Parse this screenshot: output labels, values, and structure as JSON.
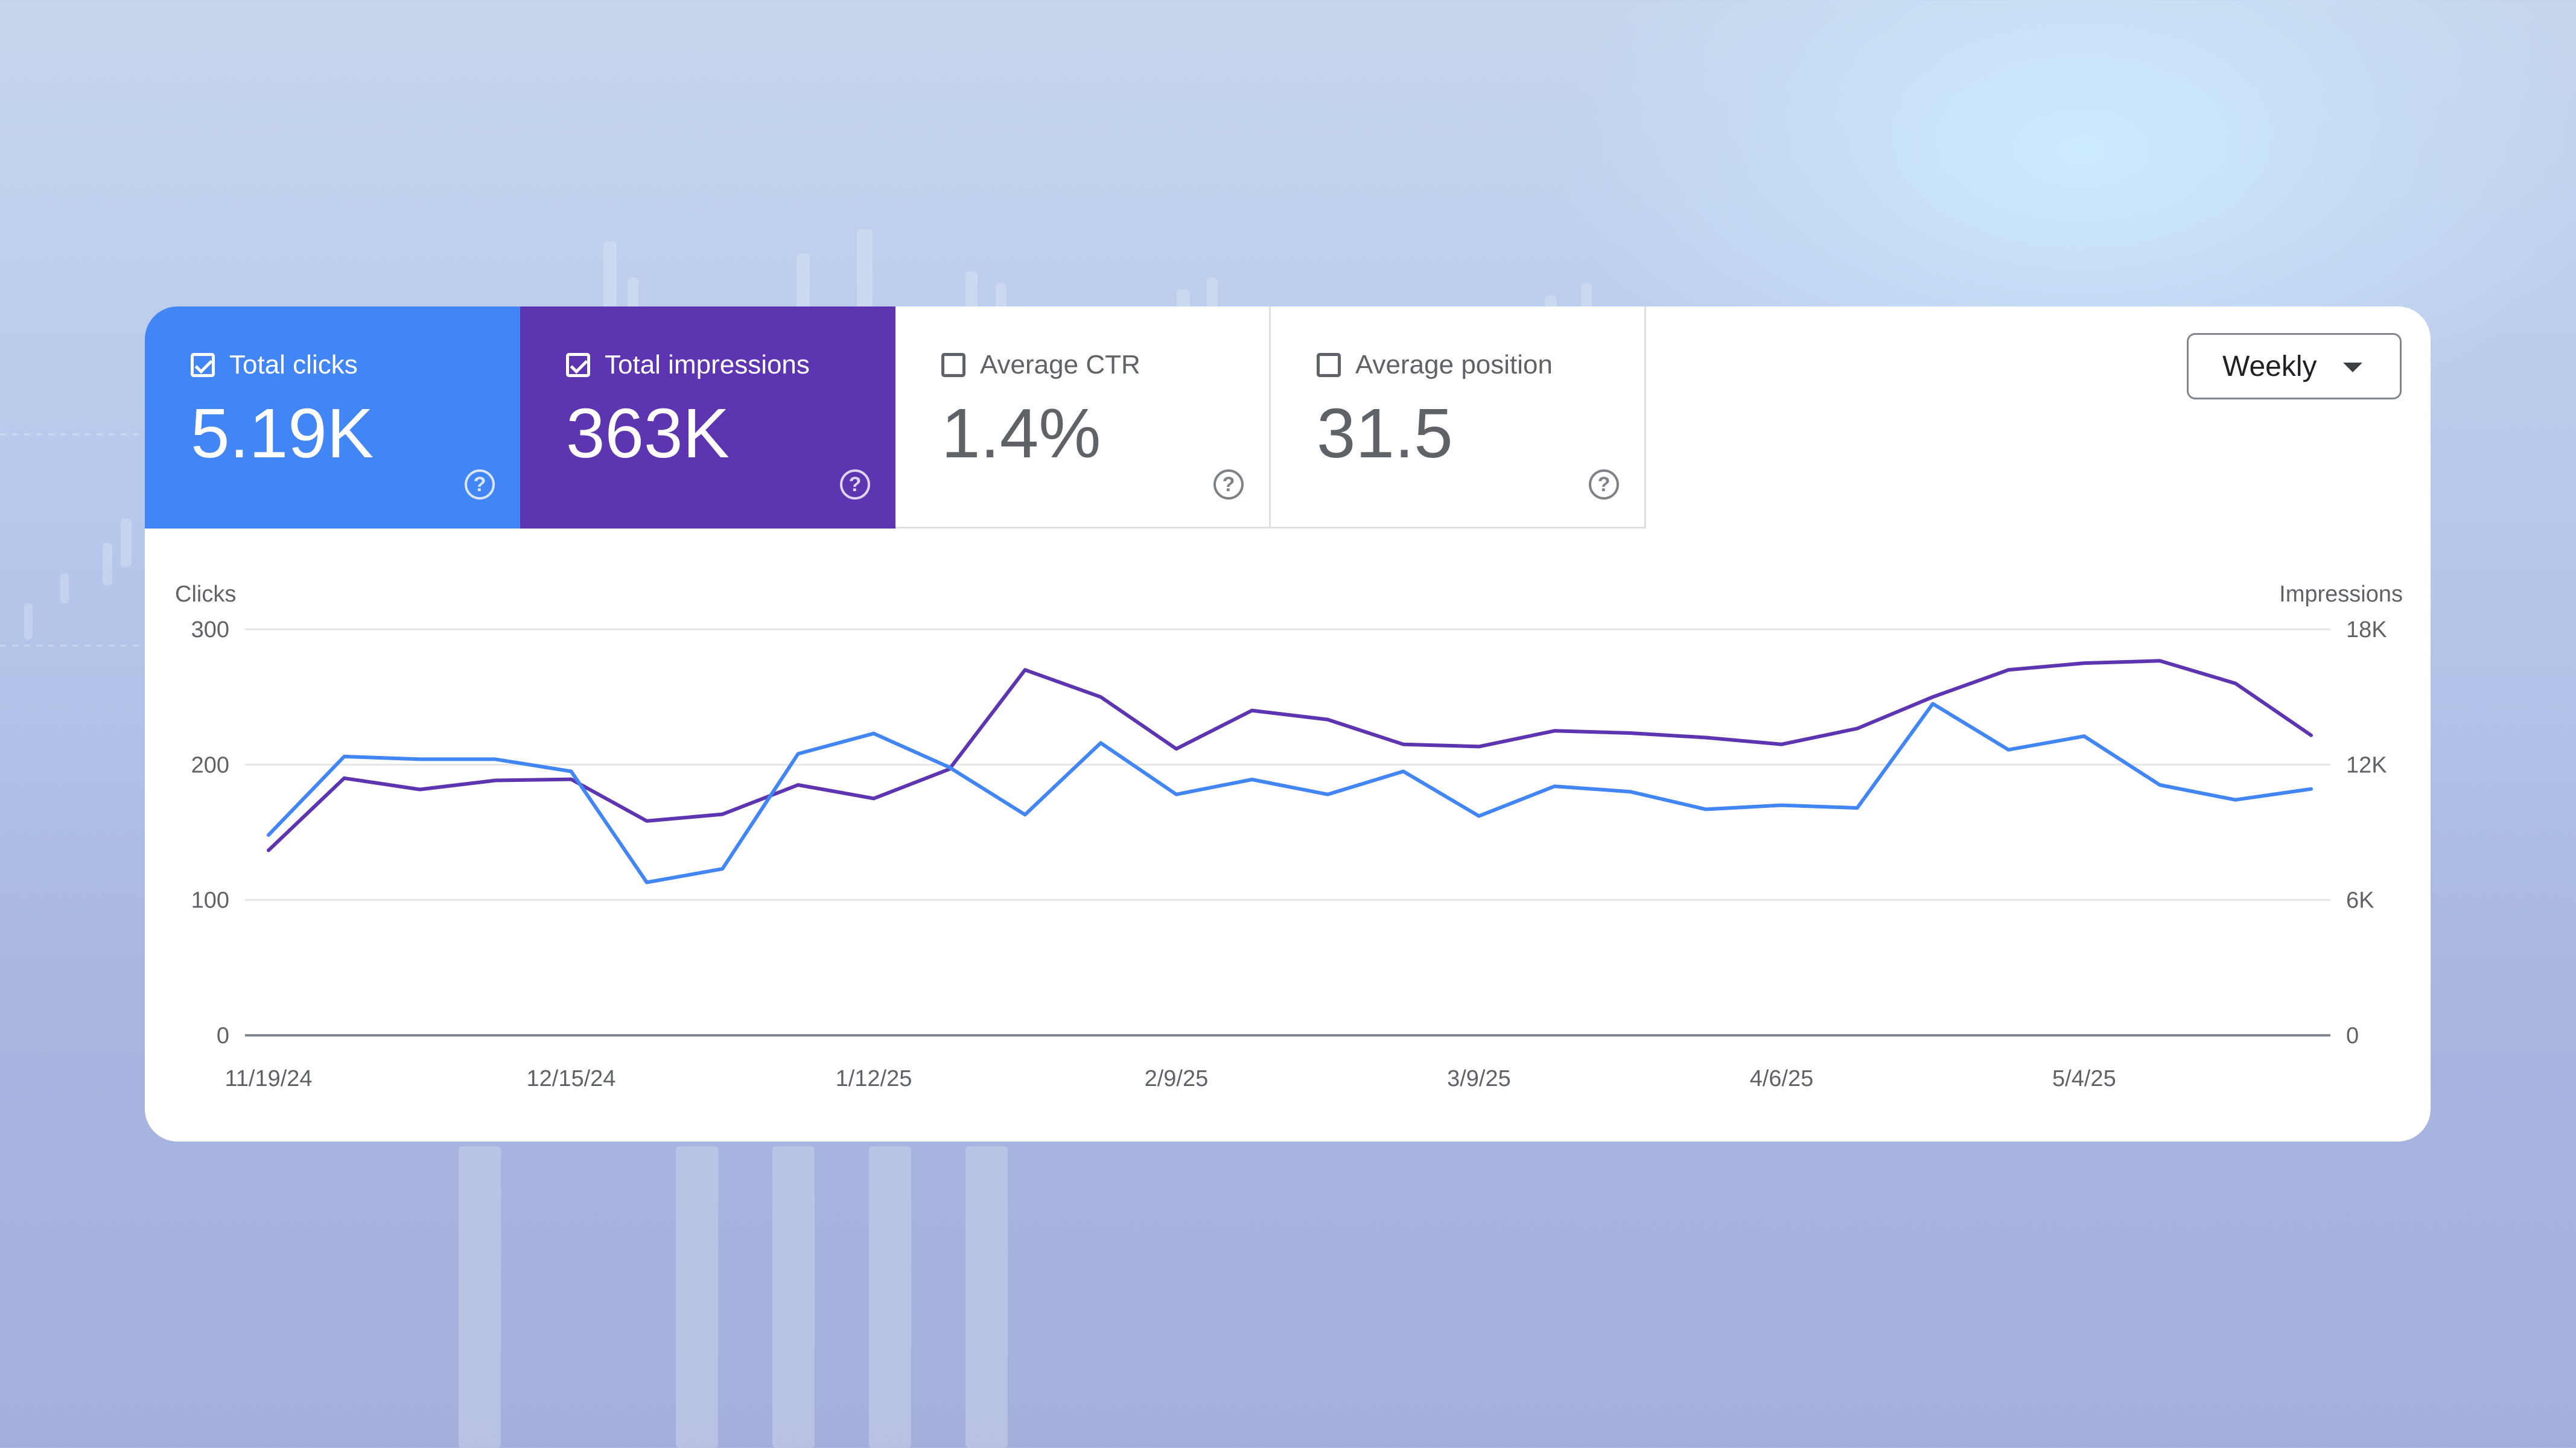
{
  "metrics": [
    {
      "label": "Total clicks",
      "value": "5.19K",
      "checked": true,
      "color": "#4285f4"
    },
    {
      "label": "Total impressions",
      "value": "363K",
      "checked": true,
      "color": "#5e35b1"
    },
    {
      "label": "Average CTR",
      "value": "1.4%",
      "checked": false
    },
    {
      "label": "Average position",
      "value": "31.5",
      "checked": false
    }
  ],
  "help_glyph": "?",
  "period_selector": {
    "value": "Weekly"
  },
  "chart_data": {
    "type": "line",
    "y_left_label": "Clicks",
    "y_right_label": "Impressions",
    "y_left_ticks": [
      "0",
      "100",
      "200",
      "300"
    ],
    "y_right_ticks": [
      "0",
      "6K",
      "12K",
      "18K"
    ],
    "y_left_range": [
      0,
      300
    ],
    "y_right_range": [
      0,
      18000
    ],
    "x_tick_labels": [
      "11/19/24",
      "12/15/24",
      "1/12/25",
      "2/9/25",
      "3/9/25",
      "4/6/25",
      "5/4/25"
    ],
    "grid": true,
    "series": [
      {
        "name": "Clicks",
        "axis": "left",
        "color": "#4285f4",
        "values": [
          148,
          206,
          204,
          204,
          195,
          113,
          123,
          208,
          223,
          198,
          163,
          216,
          178,
          189,
          178,
          195,
          162,
          184,
          180,
          167,
          170,
          168,
          245,
          211,
          221,
          185,
          174,
          182
        ]
      },
      {
        "name": "Impressions",
        "axis": "right",
        "color": "#5e35b1",
        "values": [
          8200,
          11400,
          10900,
          11300,
          11350,
          9500,
          9800,
          11100,
          10500,
          11800,
          16200,
          15000,
          12700,
          14400,
          14000,
          12900,
          12800,
          13500,
          13400,
          13200,
          12900,
          13600,
          15000,
          16200,
          16500,
          16600,
          15600,
          13300
        ]
      }
    ]
  }
}
